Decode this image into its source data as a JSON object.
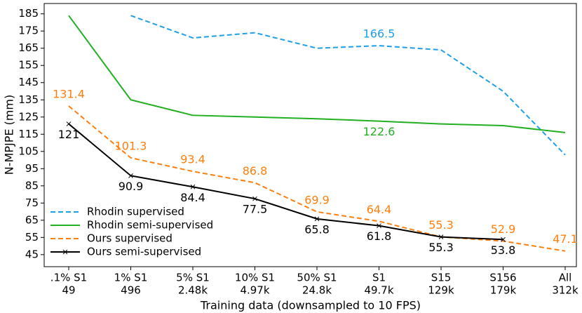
{
  "chart_data": {
    "type": "line",
    "x_label": "Training data (downsampled to 10 FPS)",
    "y_label": "N-MPJPE (mm)",
    "categories": [
      ".1% S1",
      "1% S1",
      "5% S1",
      "10% S1",
      "50% S1",
      "S1",
      "S15",
      "S156",
      "All"
    ],
    "category_sizes": [
      "49",
      "496",
      "2.48k",
      "4.97k",
      "24.8k",
      "49.7k",
      "129k",
      "179k",
      "312k"
    ],
    "ylim": [
      38,
      191
    ],
    "yticks": [
      45,
      55,
      65,
      75,
      85,
      95,
      105,
      115,
      125,
      135,
      145,
      155,
      165,
      175,
      185
    ],
    "grid": false,
    "legend": "lower left",
    "series": [
      {
        "name": "Rhodin supervised",
        "color": "#1f9fe8",
        "dash": true,
        "marker": false,
        "label_side": "above",
        "values": [
          null,
          184,
          171,
          174,
          165,
          166.5,
          164,
          140,
          103
        ],
        "value_labels": [
          null,
          null,
          null,
          null,
          null,
          "166.5",
          null,
          null,
          null
        ]
      },
      {
        "name": "Rhodin semi-supervised",
        "color": "#22b022",
        "dash": false,
        "marker": false,
        "label_side": "below",
        "values": [
          184,
          135,
          126,
          125,
          124,
          122.6,
          121,
          120,
          116
        ],
        "value_labels": [
          null,
          null,
          null,
          null,
          null,
          "122.6",
          null,
          null,
          null
        ]
      },
      {
        "name": "Ours supervised",
        "color": "#ff7f0e",
        "dash": true,
        "marker": false,
        "label_side": "above",
        "values": [
          131.4,
          101.3,
          93.4,
          86.8,
          69.9,
          64.4,
          55.3,
          52.9,
          47.1
        ],
        "value_labels": [
          "131.4",
          "101.3",
          "93.4",
          "86.8",
          "69.9",
          "64.4",
          "55.3",
          "52.9",
          "47.1"
        ]
      },
      {
        "name": "Ours semi-supervised",
        "color": "#000000",
        "dash": false,
        "marker": true,
        "label_side": "below",
        "values": [
          121,
          90.9,
          84.4,
          77.5,
          65.8,
          61.8,
          55.3,
          53.8,
          null
        ],
        "value_labels": [
          "121",
          "90.9",
          "84.4",
          "77.5",
          "65.8",
          "61.8",
          "55.3",
          "53.8",
          null
        ]
      }
    ]
  }
}
